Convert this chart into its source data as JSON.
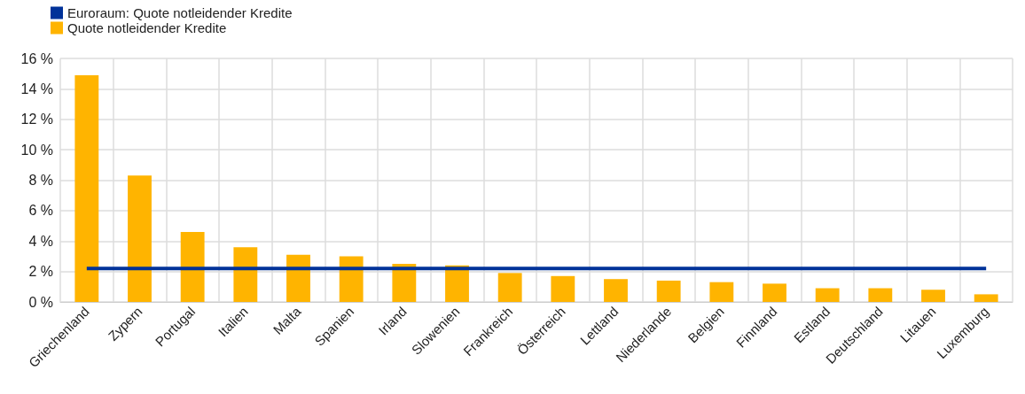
{
  "chart_data": {
    "type": "bar",
    "categories": [
      "Griechenland",
      "Zypern",
      "Portugal",
      "Italien",
      "Malta",
      "Spanien",
      "Irland",
      "Slowenien",
      "Frankreich",
      "Österreich",
      "Lettland",
      "Niederlande",
      "Belgien",
      "Finnland",
      "Estland",
      "Deutschland",
      "Litauen",
      "Luxemburg"
    ],
    "series": [
      {
        "name": "Euroraum: Quote notleidender Kredite",
        "type": "line",
        "color": "#003299",
        "values": [
          2.2,
          2.2,
          2.2,
          2.2,
          2.2,
          2.2,
          2.2,
          2.2,
          2.2,
          2.2,
          2.2,
          2.2,
          2.2,
          2.2,
          2.2,
          2.2,
          2.2,
          2.2
        ]
      },
      {
        "name": "Quote notleidender Kredite",
        "color": "#ffb400",
        "values": [
          14.9,
          8.3,
          4.6,
          3.6,
          3.1,
          3.0,
          2.5,
          2.4,
          1.9,
          1.7,
          1.5,
          1.4,
          1.3,
          1.2,
          0.9,
          0.9,
          0.8,
          0.5
        ]
      }
    ],
    "ylim": [
      0,
      16
    ],
    "yticks": [
      {
        "value": 0,
        "label": "0 %"
      },
      {
        "value": 2,
        "label": "2 %"
      },
      {
        "value": 4,
        "label": "4 %"
      },
      {
        "value": 6,
        "label": "6 %"
      },
      {
        "value": 8,
        "label": "8 %"
      },
      {
        "value": 10,
        "label": "10 %"
      },
      {
        "value": 12,
        "label": "12 %"
      },
      {
        "value": 14,
        "label": "14 %"
      },
      {
        "value": 16,
        "label": "16 %"
      }
    ],
    "grid": true,
    "legend": "top left",
    "marker": "none"
  }
}
